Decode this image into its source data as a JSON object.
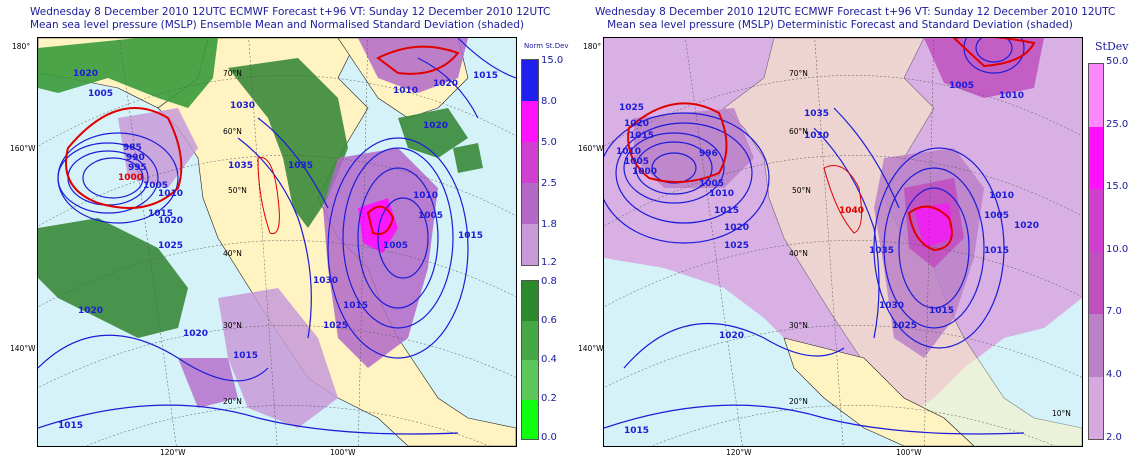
{
  "panels": [
    {
      "title_line1": "Wednesday 8 December 2010 12UTC ECMWF Forecast t+96  VT: Sunday 12 December 2010 12UTC",
      "title_line2": "Mean sea level pressure (MSLP) Ensemble Mean and Normalised Standard Deviation (shaded)",
      "colorbar_title": "Norm St.Dev",
      "colorbar_ticks": [
        "15.0",
        "8.0",
        "5.0",
        "2.5",
        "1.8",
        "1.2",
        "0.8",
        "0.6",
        "0.4",
        "0.2",
        "0.0"
      ],
      "colorbar_colors_upper": [
        "#2020ee",
        "#ff10ff",
        "#d040d0",
        "#b368c8",
        "#c89ad8"
      ],
      "colorbar_colors_lower": [
        "#2c8a2c",
        "#44a844",
        "#5cc85c",
        "#36e036",
        "#10ff10"
      ],
      "isobar_labels": [
        "1020",
        "1005",
        "985",
        "990",
        "995",
        "1000",
        "1005",
        "1010",
        "1015",
        "1020",
        "1025",
        "1035",
        "1035",
        "1030",
        "1030",
        "1025",
        "1020",
        "1015",
        "1015",
        "1010",
        "1005",
        "1015",
        "1020",
        "1020",
        "1015",
        "1015",
        "1010",
        "1005",
        "1020"
      ],
      "lat_labels": [
        "70°N",
        "60°N",
        "50°N",
        "40°N",
        "30°N",
        "20°N"
      ],
      "lon_labels": [
        "180°",
        "160°W",
        "140°W",
        "120°W",
        "100°W"
      ]
    },
    {
      "title_line1": "Wednesday 8 December 2010 12UTC ECMWF Forecast t+96  VT: Sunday 12 December 2010 12UTC",
      "title_line2": "Mean sea level pressure (MSLP) Deterministic Forecast and Standard Deviation (shaded)",
      "colorbar_title": "StDev",
      "colorbar_ticks": [
        "50.0",
        "25.0",
        "15.0",
        "10.0",
        "7.0",
        "4.0",
        "2.0"
      ],
      "colorbar_colors": [
        "#ff88ff",
        "#ff10ff",
        "#d040d0",
        "#c050c0",
        "#bb80c8",
        "#d8a8e0"
      ],
      "isobar_labels": [
        "1025",
        "1020",
        "1015",
        "1010",
        "1005",
        "1000",
        "996",
        "1005",
        "1010",
        "1015",
        "1020",
        "1025",
        "1030",
        "1035",
        "1040",
        "1035",
        "1030",
        "1025",
        "1020",
        "1015",
        "1010",
        "1005",
        "1020",
        "1015",
        "1015",
        "1010",
        "1005"
      ],
      "lat_labels": [
        "70°N",
        "60°N",
        "50°N",
        "40°N",
        "30°N",
        "20°N",
        "10°N"
      ],
      "lon_labels": [
        "180°",
        "160°W",
        "140°W",
        "120°W",
        "100°W"
      ]
    }
  ]
}
